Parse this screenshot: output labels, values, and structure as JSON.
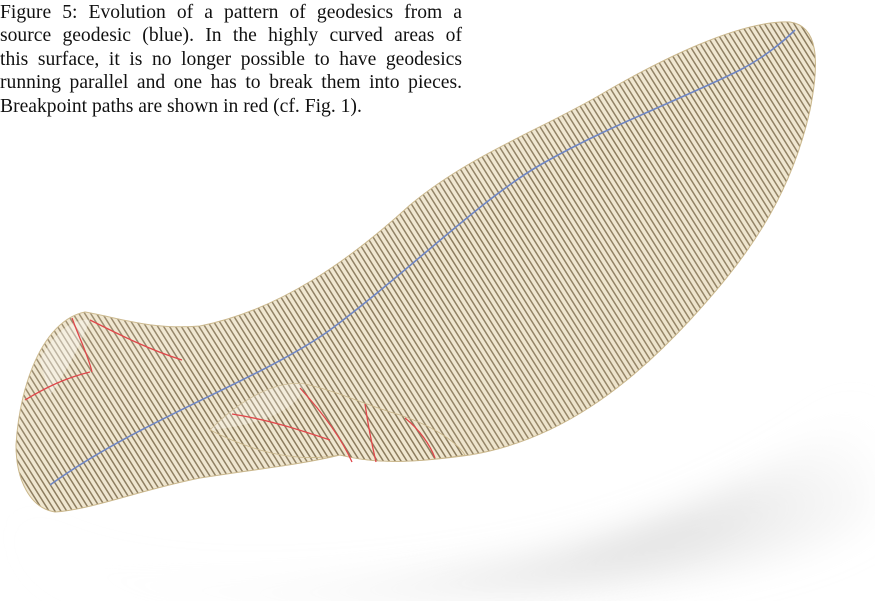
{
  "caption": {
    "lines": [
      "Figure 5: Evolution of a pattern of geodesics from a",
      "source geodesic (blue).  In the highly curved areas of",
      "this surface, it is no longer possible to have geodesics",
      "running parallel and one has to break them into pieces.",
      "Breakpoint paths are shown in red (cf. Fig. 1)."
    ]
  },
  "figure": {
    "surface_color": "#efe6cf",
    "stripe_color": "#6b5838",
    "source_geodesic_color": "#6f86c4",
    "breakpoint_path_color": "#e0464a",
    "shadow_color": "#bdbdbd"
  }
}
